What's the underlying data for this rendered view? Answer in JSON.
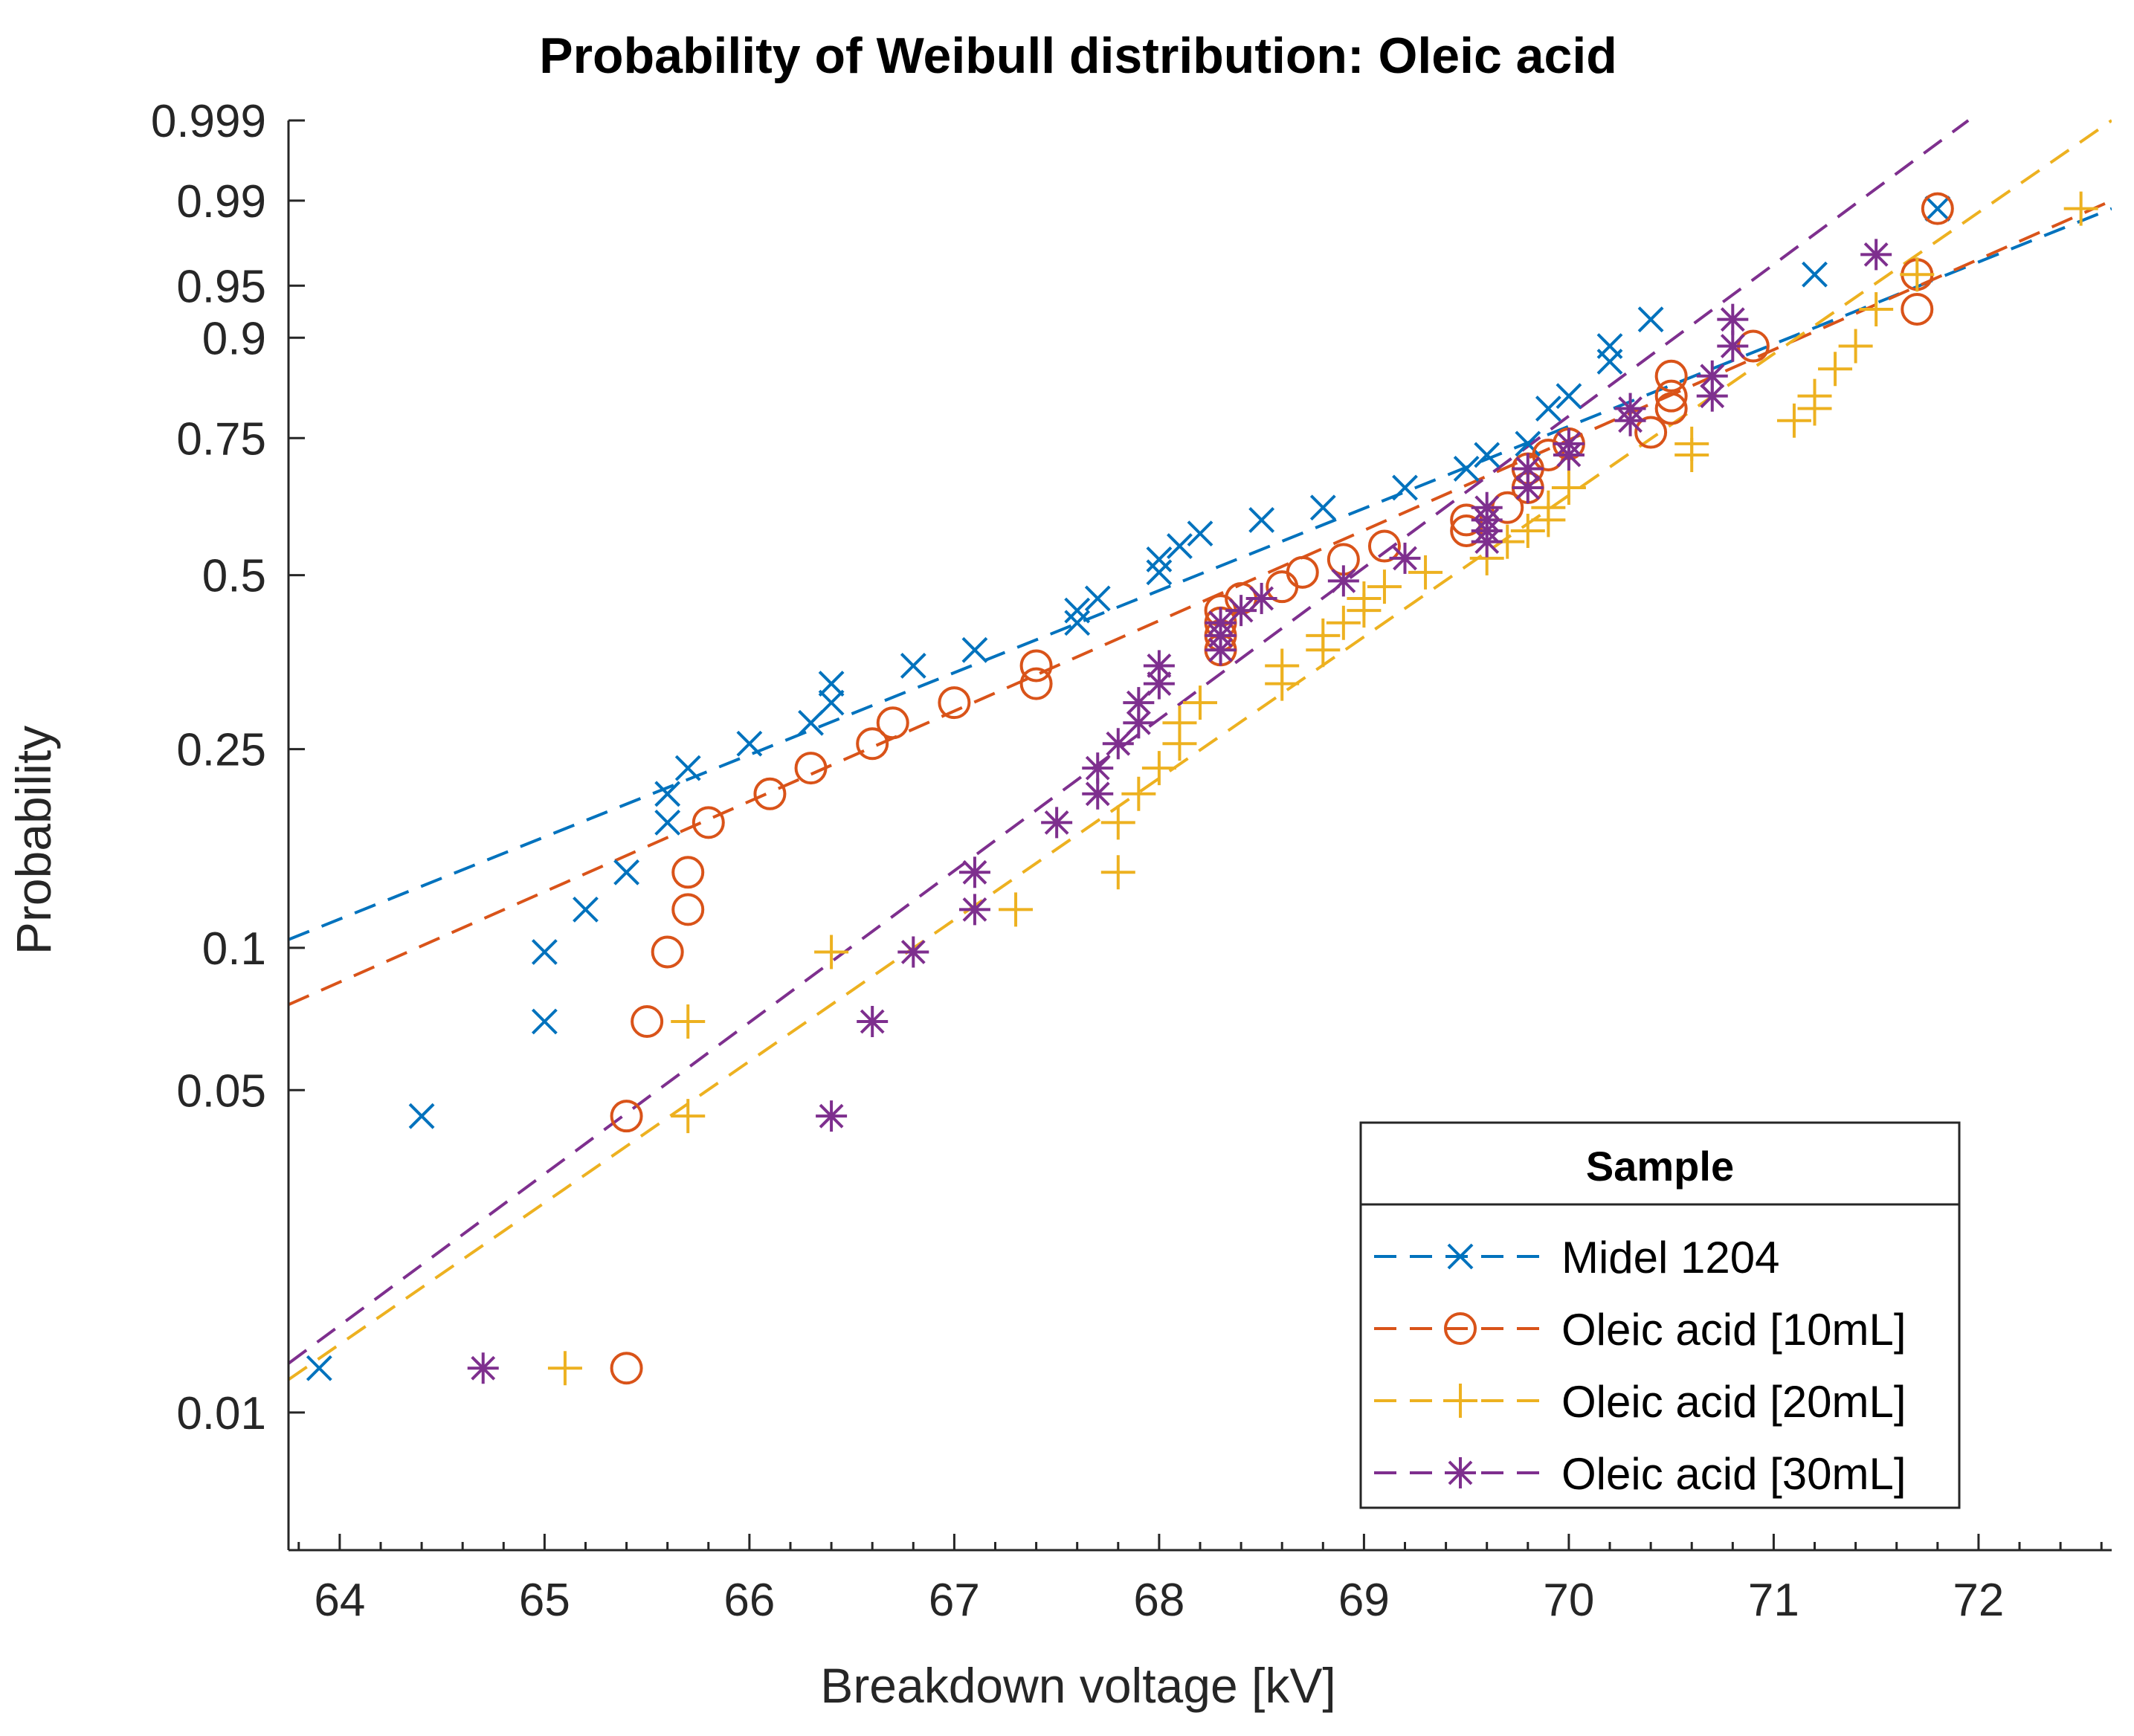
{
  "chart_data": {
    "type": "scatter",
    "title": "Probability of Weibull distribution: Oleic acid",
    "xlabel": "Breakdown voltage [kV]",
    "ylabel": "Probability",
    "xlim": [
      63.75,
      72.65
    ],
    "ylim": [
      0.005,
      0.999
    ],
    "y_scale": "weibull",
    "x_ticks": [
      64,
      65,
      66,
      67,
      68,
      69,
      70,
      71,
      72
    ],
    "x_tick_labels": [
      "64",
      "65",
      "66",
      "67",
      "68",
      "69",
      "70",
      "71",
      "72"
    ],
    "y_ticks": [
      0.01,
      0.05,
      0.1,
      0.25,
      0.5,
      0.75,
      0.9,
      0.95,
      0.99,
      0.999
    ],
    "y_tick_labels": [
      "0.01",
      "0.05",
      "0.1",
      "0.25",
      "0.5",
      "0.75",
      "0.9",
      "0.95",
      "0.99",
      "0.999"
    ],
    "legend": {
      "title": "Sample",
      "position": "bottom-right"
    },
    "series": [
      {
        "name": "Midel 1204",
        "color": "#0072BD",
        "marker": "x",
        "fit_line": [
          [
            63.75,
            0.104
          ],
          [
            72.65,
            0.988
          ]
        ],
        "points": [
          [
            63.9,
            0.0125
          ],
          [
            64.4,
            0.044
          ],
          [
            65.0,
            0.07
          ],
          [
            65.0,
            0.098
          ],
          [
            65.2,
            0.12
          ],
          [
            65.4,
            0.143
          ],
          [
            65.6,
            0.18
          ],
          [
            65.6,
            0.205
          ],
          [
            65.7,
            0.23
          ],
          [
            66.0,
            0.256
          ],
          [
            66.3,
            0.28
          ],
          [
            66.4,
            0.305
          ],
          [
            66.4,
            0.33
          ],
          [
            66.8,
            0.355
          ],
          [
            67.1,
            0.378
          ],
          [
            67.6,
            0.42
          ],
          [
            67.6,
            0.44
          ],
          [
            67.7,
            0.46
          ],
          [
            68.0,
            0.505
          ],
          [
            68.0,
            0.528
          ],
          [
            68.1,
            0.552
          ],
          [
            68.2,
            0.575
          ],
          [
            68.5,
            0.6
          ],
          [
            68.8,
            0.623
          ],
          [
            69.2,
            0.66
          ],
          [
            69.5,
            0.695
          ],
          [
            69.6,
            0.72
          ],
          [
            69.8,
            0.74
          ],
          [
            69.9,
            0.8
          ],
          [
            70.0,
            0.82
          ],
          [
            70.2,
            0.87
          ],
          [
            70.2,
            0.89
          ],
          [
            70.4,
            0.92
          ],
          [
            71.2,
            0.958
          ],
          [
            71.8,
            0.988
          ]
        ]
      },
      {
        "name": "Oleic acid [10mL]",
        "color": "#D95319",
        "marker": "o",
        "fit_line": [
          [
            63.75,
            0.076
          ],
          [
            72.65,
            0.99
          ]
        ],
        "points": [
          [
            65.4,
            0.0125
          ],
          [
            65.4,
            0.044
          ],
          [
            65.5,
            0.07
          ],
          [
            65.6,
            0.098
          ],
          [
            65.7,
            0.12
          ],
          [
            65.7,
            0.143
          ],
          [
            65.8,
            0.18
          ],
          [
            66.1,
            0.205
          ],
          [
            66.3,
            0.23
          ],
          [
            66.6,
            0.256
          ],
          [
            66.7,
            0.28
          ],
          [
            67.0,
            0.305
          ],
          [
            67.4,
            0.33
          ],
          [
            67.4,
            0.355
          ],
          [
            68.3,
            0.378
          ],
          [
            68.3,
            0.4
          ],
          [
            68.3,
            0.42
          ],
          [
            68.3,
            0.44
          ],
          [
            68.4,
            0.46
          ],
          [
            68.6,
            0.48
          ],
          [
            68.7,
            0.505
          ],
          [
            68.9,
            0.528
          ],
          [
            69.1,
            0.552
          ],
          [
            69.5,
            0.58
          ],
          [
            69.5,
            0.6
          ],
          [
            69.7,
            0.623
          ],
          [
            69.8,
            0.66
          ],
          [
            69.8,
            0.695
          ],
          [
            69.9,
            0.72
          ],
          [
            70.0,
            0.74
          ],
          [
            70.4,
            0.76
          ],
          [
            70.5,
            0.8
          ],
          [
            70.5,
            0.82
          ],
          [
            70.5,
            0.85
          ],
          [
            70.9,
            0.89
          ],
          [
            71.7,
            0.93
          ],
          [
            71.7,
            0.958
          ],
          [
            71.8,
            0.988
          ]
        ]
      },
      {
        "name": "Oleic acid [20mL]",
        "color": "#EDB120",
        "marker": "+",
        "fit_line": [
          [
            63.75,
            0.0118
          ],
          [
            72.65,
            0.999
          ]
        ],
        "points": [
          [
            65.1,
            0.0125
          ],
          [
            65.7,
            0.044
          ],
          [
            65.7,
            0.07
          ],
          [
            66.4,
            0.098
          ],
          [
            67.3,
            0.12
          ],
          [
            67.8,
            0.143
          ],
          [
            67.8,
            0.18
          ],
          [
            67.9,
            0.205
          ],
          [
            68.0,
            0.23
          ],
          [
            68.1,
            0.256
          ],
          [
            68.1,
            0.28
          ],
          [
            68.2,
            0.305
          ],
          [
            68.6,
            0.33
          ],
          [
            68.6,
            0.355
          ],
          [
            68.8,
            0.378
          ],
          [
            68.8,
            0.4
          ],
          [
            68.9,
            0.42
          ],
          [
            69.0,
            0.44
          ],
          [
            69.0,
            0.46
          ],
          [
            69.1,
            0.48
          ],
          [
            69.3,
            0.505
          ],
          [
            69.6,
            0.53
          ],
          [
            69.7,
            0.56
          ],
          [
            69.8,
            0.58
          ],
          [
            69.9,
            0.6
          ],
          [
            69.9,
            0.623
          ],
          [
            70.0,
            0.66
          ],
          [
            70.6,
            0.72
          ],
          [
            70.6,
            0.74
          ],
          [
            71.1,
            0.78
          ],
          [
            71.2,
            0.8
          ],
          [
            71.2,
            0.82
          ],
          [
            71.3,
            0.86
          ],
          [
            71.4,
            0.89
          ],
          [
            71.5,
            0.93
          ],
          [
            71.7,
            0.958
          ],
          [
            72.5,
            0.988
          ]
        ]
      },
      {
        "name": "Oleic acid [30mL]",
        "color": "#7E2F8E",
        "marker": "*",
        "fit_line": [
          [
            63.75,
            0.0128
          ],
          [
            71.95,
            0.999
          ]
        ],
        "points": [
          [
            64.7,
            0.0125
          ],
          [
            66.4,
            0.044
          ],
          [
            66.6,
            0.07
          ],
          [
            66.8,
            0.098
          ],
          [
            67.1,
            0.12
          ],
          [
            67.1,
            0.143
          ],
          [
            67.5,
            0.18
          ],
          [
            67.7,
            0.205
          ],
          [
            67.7,
            0.23
          ],
          [
            67.8,
            0.256
          ],
          [
            67.9,
            0.28
          ],
          [
            67.9,
            0.305
          ],
          [
            68.0,
            0.33
          ],
          [
            68.0,
            0.355
          ],
          [
            68.3,
            0.378
          ],
          [
            68.3,
            0.4
          ],
          [
            68.3,
            0.42
          ],
          [
            68.4,
            0.44
          ],
          [
            68.5,
            0.46
          ],
          [
            68.9,
            0.49
          ],
          [
            69.2,
            0.53
          ],
          [
            69.6,
            0.56
          ],
          [
            69.6,
            0.58
          ],
          [
            69.6,
            0.6
          ],
          [
            69.6,
            0.623
          ],
          [
            69.8,
            0.66
          ],
          [
            69.8,
            0.695
          ],
          [
            70.0,
            0.72
          ],
          [
            70.0,
            0.74
          ],
          [
            70.3,
            0.78
          ],
          [
            70.3,
            0.8
          ],
          [
            70.7,
            0.82
          ],
          [
            70.7,
            0.85
          ],
          [
            70.8,
            0.89
          ],
          [
            70.8,
            0.92
          ],
          [
            71.5,
            0.97
          ]
        ]
      }
    ]
  }
}
